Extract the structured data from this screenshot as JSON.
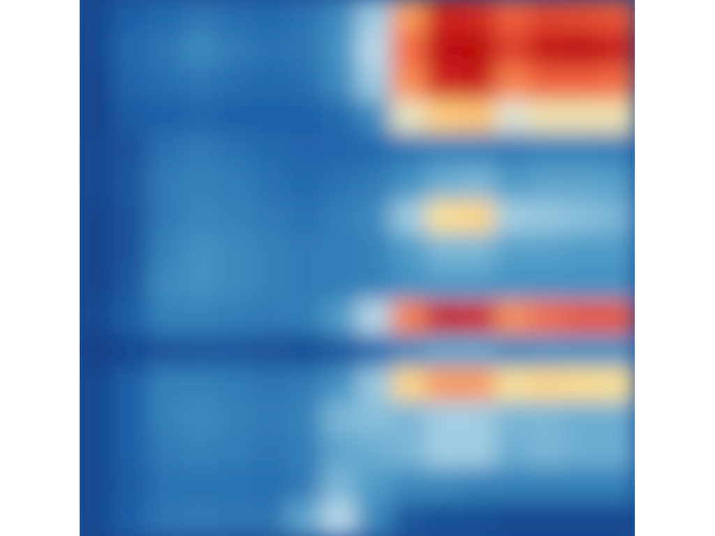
{
  "chart_data": {
    "type": "heatmap",
    "title": "",
    "xlabel": "",
    "ylabel": "",
    "colormap": "RdYlBu_r",
    "colorscale": [
      "#0f337a",
      "#2166ac",
      "#4393c3",
      "#92c5de",
      "#d1e5f0",
      "#fee090",
      "#fdae61",
      "#f46d43",
      "#d73027",
      "#b2000a"
    ],
    "value_range": [
      0,
      1
    ],
    "grid": false,
    "legend": "none",
    "rows": 16,
    "cols": 16,
    "values": [
      [
        0.05,
        0.1,
        0.12,
        0.15,
        0.13,
        0.12,
        0.14,
        0.2,
        0.35,
        0.7,
        0.92,
        0.9,
        0.8,
        0.85,
        0.84,
        0.82
      ],
      [
        0.05,
        0.12,
        0.15,
        0.2,
        0.16,
        0.14,
        0.15,
        0.22,
        0.4,
        0.78,
        0.97,
        0.98,
        0.86,
        0.95,
        0.97,
        0.93
      ],
      [
        0.04,
        0.11,
        0.13,
        0.15,
        0.13,
        0.12,
        0.13,
        0.2,
        0.35,
        0.72,
        0.92,
        0.93,
        0.74,
        0.8,
        0.8,
        0.78
      ],
      [
        0.04,
        0.09,
        0.1,
        0.11,
        0.1,
        0.1,
        0.1,
        0.12,
        0.2,
        0.5,
        0.6,
        0.62,
        0.48,
        0.52,
        0.52,
        0.52
      ],
      [
        0.05,
        0.07,
        0.14,
        0.16,
        0.14,
        0.12,
        0.11,
        0.11,
        0.12,
        0.15,
        0.18,
        0.18,
        0.16,
        0.18,
        0.18,
        0.17
      ],
      [
        0.05,
        0.08,
        0.16,
        0.18,
        0.17,
        0.14,
        0.12,
        0.14,
        0.16,
        0.22,
        0.28,
        0.3,
        0.24,
        0.26,
        0.26,
        0.25
      ],
      [
        0.04,
        0.07,
        0.16,
        0.19,
        0.18,
        0.16,
        0.14,
        0.17,
        0.2,
        0.35,
        0.55,
        0.58,
        0.36,
        0.34,
        0.32,
        0.3
      ],
      [
        0.04,
        0.07,
        0.18,
        0.22,
        0.2,
        0.18,
        0.16,
        0.17,
        0.18,
        0.24,
        0.3,
        0.3,
        0.25,
        0.25,
        0.24,
        0.24
      ],
      [
        0.04,
        0.08,
        0.2,
        0.22,
        0.2,
        0.18,
        0.16,
        0.17,
        0.18,
        0.22,
        0.24,
        0.24,
        0.22,
        0.22,
        0.22,
        0.22
      ],
      [
        0.05,
        0.1,
        0.18,
        0.18,
        0.17,
        0.16,
        0.17,
        0.24,
        0.4,
        0.74,
        0.93,
        0.92,
        0.72,
        0.78,
        0.82,
        0.82
      ],
      [
        0.03,
        0.05,
        0.07,
        0.08,
        0.08,
        0.07,
        0.06,
        0.08,
        0.12,
        0.2,
        0.26,
        0.26,
        0.2,
        0.22,
        0.22,
        0.22
      ],
      [
        0.05,
        0.1,
        0.18,
        0.18,
        0.17,
        0.15,
        0.16,
        0.22,
        0.34,
        0.58,
        0.7,
        0.7,
        0.55,
        0.58,
        0.56,
        0.55
      ],
      [
        0.05,
        0.1,
        0.18,
        0.2,
        0.18,
        0.16,
        0.18,
        0.3,
        0.32,
        0.3,
        0.36,
        0.36,
        0.3,
        0.3,
        0.28,
        0.28
      ],
      [
        0.05,
        0.1,
        0.16,
        0.18,
        0.17,
        0.15,
        0.17,
        0.26,
        0.28,
        0.3,
        0.36,
        0.36,
        0.28,
        0.3,
        0.28,
        0.28
      ],
      [
        0.05,
        0.09,
        0.14,
        0.14,
        0.14,
        0.13,
        0.16,
        0.3,
        0.24,
        0.2,
        0.2,
        0.18,
        0.18,
        0.18,
        0.18,
        0.18
      ],
      [
        0.05,
        0.1,
        0.15,
        0.16,
        0.15,
        0.15,
        0.26,
        0.4,
        0.2,
        0.08,
        0.06,
        0.06,
        0.05,
        0.05,
        0.05,
        0.05
      ]
    ]
  }
}
